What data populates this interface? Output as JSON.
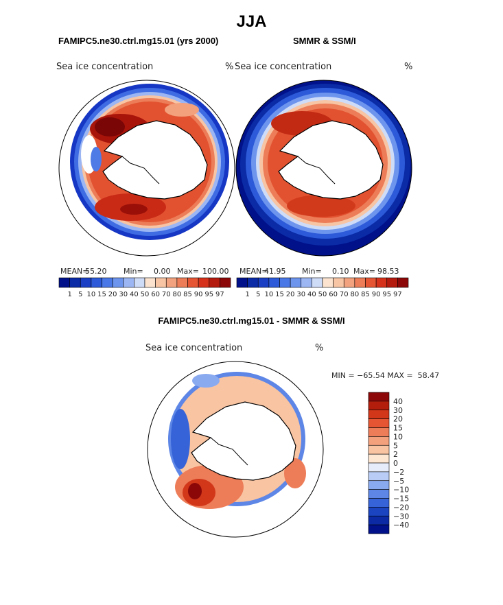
{
  "page_title": "JJA",
  "panels": [
    {
      "title": "FAMIPC5.ne30.ctrl.mg15.01 (yrs 2000)",
      "variable": "Sea ice concentration",
      "units": "%",
      "mean_label": "MEAN=",
      "mean": "55.20",
      "min_label": "Min=",
      "min": "0.00",
      "max_label": "Max=",
      "max": "100.00"
    },
    {
      "title": "SMMR & SSM/I",
      "variable": "Sea ice concentration",
      "units": "%",
      "mean_label": "MEAN=",
      "mean": "41.95",
      "min_label": "Min=",
      "min": "0.10",
      "max_label": "Max=",
      "max": "98.53"
    }
  ],
  "diff_panel": {
    "title": "FAMIPC5.ne30.ctrl.mg15.01 - SMMR & SSM/I",
    "variable": "Sea ice concentration",
    "units": "%",
    "minmax_text": "MIN = −65.54 MAX =  58.47"
  },
  "conc_colorbar": {
    "levels": [
      "1",
      "5",
      "10",
      "15",
      "20",
      "30",
      "40",
      "50",
      "60",
      "70",
      "80",
      "85",
      "90",
      "95",
      "97"
    ],
    "colors": [
      "#00118a",
      "#0a2aa6",
      "#1a3fc4",
      "#2c5ad8",
      "#4a78e6",
      "#6d95ee",
      "#9cb6f4",
      "#cfdcf8",
      "#fbe3cf",
      "#f7c4a4",
      "#f2a27f",
      "#ec7d58",
      "#e65533",
      "#d6321b",
      "#b51a0e",
      "#8c0808"
    ]
  },
  "diff_colorbar": {
    "levels": [
      "40",
      "30",
      "20",
      "15",
      "10",
      "5",
      "2",
      "0",
      "−2",
      "−5",
      "−10",
      "−15",
      "−20",
      "−30",
      "−40"
    ],
    "colors": [
      "#8c0808",
      "#b31d0c",
      "#d2371a",
      "#e65533",
      "#ed7c58",
      "#f3a07c",
      "#f9c4a2",
      "#fde6d2",
      "#e6ecfa",
      "#b8ccf6",
      "#8aaaf0",
      "#5d86e6",
      "#3664d8",
      "#1a44c0",
      "#0b2aa4",
      "#00118a"
    ]
  }
}
